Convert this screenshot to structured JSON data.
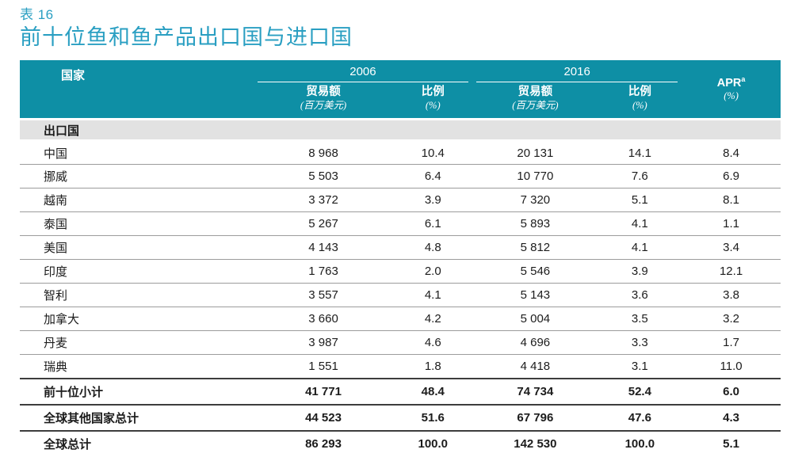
{
  "header": {
    "table_label": "表 16",
    "title": "前十位鱼和鱼产品出口国与进口国"
  },
  "colors": {
    "header_bg": "#0E8FA5",
    "title_color": "#2A9FC2",
    "section_bg": "#E2E2E2",
    "row_line": "#9C9C9C",
    "strong_line": "#3D3D3D"
  },
  "table": {
    "columns": {
      "country": "国家",
      "year_2006": "2006",
      "year_2016": "2016",
      "trade_label": "贸易额",
      "trade_unit": "(百万美元)",
      "share_label": "比例",
      "share_unit": "(%)",
      "apr_label": "APR",
      "apr_sup": "a",
      "apr_unit": "(%)"
    },
    "section_label": "出口国",
    "rows": [
      {
        "country": "中国",
        "trade_2006": "8 968",
        "share_2006": "10.4",
        "trade_2016": "20 131",
        "share_2016": "14.1",
        "apr": "8.4"
      },
      {
        "country": "挪威",
        "trade_2006": "5 503",
        "share_2006": "6.4",
        "trade_2016": "10 770",
        "share_2016": "7.6",
        "apr": "6.9"
      },
      {
        "country": "越南",
        "trade_2006": "3 372",
        "share_2006": "3.9",
        "trade_2016": "7 320",
        "share_2016": "5.1",
        "apr": "8.1"
      },
      {
        "country": "泰国",
        "trade_2006": "5 267",
        "share_2006": "6.1",
        "trade_2016": "5 893",
        "share_2016": "4.1",
        "apr": "1.1"
      },
      {
        "country": "美国",
        "trade_2006": "4 143",
        "share_2006": "4.8",
        "trade_2016": "5 812",
        "share_2016": "4.1",
        "apr": "3.4"
      },
      {
        "country": "印度",
        "trade_2006": "1 763",
        "share_2006": "2.0",
        "trade_2016": "5 546",
        "share_2016": "3.9",
        "apr": "12.1"
      },
      {
        "country": "智利",
        "trade_2006": "3 557",
        "share_2006": "4.1",
        "trade_2016": "5 143",
        "share_2016": "3.6",
        "apr": "3.8"
      },
      {
        "country": "加拿大",
        "trade_2006": "3 660",
        "share_2006": "4.2",
        "trade_2016": "5 004",
        "share_2016": "3.5",
        "apr": "3.2"
      },
      {
        "country": "丹麦",
        "trade_2006": "3 987",
        "share_2006": "4.6",
        "trade_2016": "4 696",
        "share_2016": "3.3",
        "apr": "1.7"
      },
      {
        "country": "瑞典",
        "trade_2006": "1 551",
        "share_2006": "1.8",
        "trade_2016": "4 418",
        "share_2016": "3.1",
        "apr": "11.0"
      }
    ],
    "summary": [
      {
        "country": "前十位小计",
        "trade_2006": "41 771",
        "share_2006": "48.4",
        "trade_2016": "74 734",
        "share_2016": "52.4",
        "apr": "6.0"
      },
      {
        "country": "全球其他国家总计",
        "trade_2006": "44 523",
        "share_2006": "51.6",
        "trade_2016": "67 796",
        "share_2016": "47.6",
        "apr": "4.3"
      },
      {
        "country": "全球总计",
        "trade_2006": "86 293",
        "share_2006": "100.0",
        "trade_2016": "142 530",
        "share_2016": "100.0",
        "apr": "5.1"
      }
    ]
  }
}
